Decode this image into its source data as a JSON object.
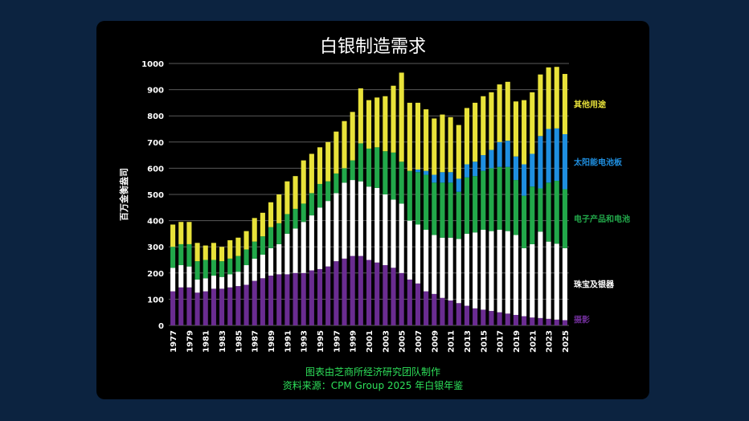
{
  "chart_data": {
    "type": "bar",
    "stacked": true,
    "title": "白银制造需求",
    "ylabel": "百万金衡盎司",
    "xlabel": "",
    "ylim": [
      0,
      1000
    ],
    "y_ticks": [
      0,
      100,
      200,
      300,
      400,
      500,
      600,
      700,
      800,
      900,
      1000
    ],
    "grid": true,
    "legend_placement": "right",
    "categories": [
      "1977",
      "1978",
      "1979",
      "1980",
      "1981",
      "1982",
      "1983",
      "1984",
      "1985",
      "1986",
      "1987",
      "1988",
      "1989",
      "1990",
      "1991",
      "1992",
      "1993",
      "1994",
      "1995",
      "1996",
      "1997",
      "1998",
      "1999",
      "2000",
      "2001",
      "2002",
      "2003",
      "2004",
      "2005",
      "2006",
      "2007",
      "2008",
      "2009",
      "2010",
      "2011",
      "2012",
      "2013",
      "2014",
      "2015",
      "2016",
      "2017",
      "2018",
      "2019",
      "2020",
      "2021",
      "2022",
      "2023",
      "2024",
      "2025"
    ],
    "x_tick_labels": [
      "1977",
      "1979",
      "1981",
      "1983",
      "1985",
      "1987",
      "1989",
      "1991",
      "1993",
      "1995",
      "1997",
      "1999",
      "2001",
      "2003",
      "2005",
      "2007",
      "2009",
      "2011",
      "2013",
      "2015",
      "2017",
      "2019",
      "2021",
      "2023",
      "2025"
    ],
    "series": [
      {
        "name": "摄影",
        "color": "#6a2c91",
        "values": [
          130,
          145,
          145,
          125,
          130,
          140,
          140,
          145,
          150,
          155,
          170,
          180,
          190,
          195,
          195,
          200,
          200,
          210,
          215,
          225,
          245,
          255,
          265,
          265,
          250,
          240,
          230,
          220,
          200,
          175,
          160,
          130,
          120,
          105,
          95,
          85,
          75,
          65,
          60,
          55,
          50,
          45,
          40,
          35,
          30,
          28,
          25,
          22,
          20
        ]
      },
      {
        "name": "珠宝及银器",
        "color": "#ffffff",
        "values": [
          90,
          85,
          80,
          50,
          50,
          50,
          45,
          50,
          55,
          75,
          85,
          90,
          105,
          115,
          155,
          170,
          195,
          210,
          235,
          250,
          260,
          290,
          290,
          285,
          280,
          285,
          270,
          260,
          265,
          225,
          225,
          235,
          225,
          230,
          240,
          245,
          275,
          290,
          305,
          305,
          315,
          315,
          305,
          260,
          280,
          330,
          295,
          290,
          275
        ]
      },
      {
        "name": "电子产品和电池",
        "color": "#22a84a",
        "values": [
          80,
          80,
          85,
          70,
          70,
          60,
          60,
          60,
          60,
          60,
          65,
          70,
          80,
          80,
          75,
          75,
          70,
          85,
          90,
          75,
          75,
          55,
          75,
          145,
          145,
          155,
          165,
          180,
          160,
          190,
          200,
          210,
          200,
          210,
          210,
          180,
          215,
          215,
          225,
          240,
          240,
          245,
          210,
          200,
          220,
          165,
          225,
          240,
          225
        ]
      },
      {
        "name": "太阳能电池板",
        "color": "#1f8fe0",
        "values": [
          0,
          0,
          0,
          0,
          0,
          0,
          0,
          0,
          0,
          0,
          0,
          0,
          0,
          0,
          0,
          0,
          0,
          0,
          0,
          0,
          0,
          0,
          0,
          0,
          0,
          0,
          0,
          0,
          0,
          0,
          10,
          15,
          30,
          40,
          40,
          50,
          50,
          55,
          60,
          70,
          95,
          100,
          90,
          120,
          125,
          200,
          205,
          200,
          210
        ]
      },
      {
        "name": "其他用途",
        "color": "#e8e23a",
        "values": [
          85,
          85,
          85,
          70,
          55,
          65,
          55,
          70,
          70,
          70,
          90,
          90,
          95,
          110,
          125,
          125,
          165,
          150,
          140,
          150,
          160,
          180,
          185,
          210,
          185,
          190,
          210,
          255,
          340,
          260,
          255,
          235,
          215,
          220,
          210,
          205,
          215,
          225,
          225,
          220,
          220,
          225,
          210,
          245,
          235,
          235,
          235,
          235,
          230
        ]
      }
    ]
  },
  "source": {
    "line1": "图表由芝商所经济研究团队制作",
    "line2": "资料来源：CPM Group 2025 年白银年鉴"
  }
}
